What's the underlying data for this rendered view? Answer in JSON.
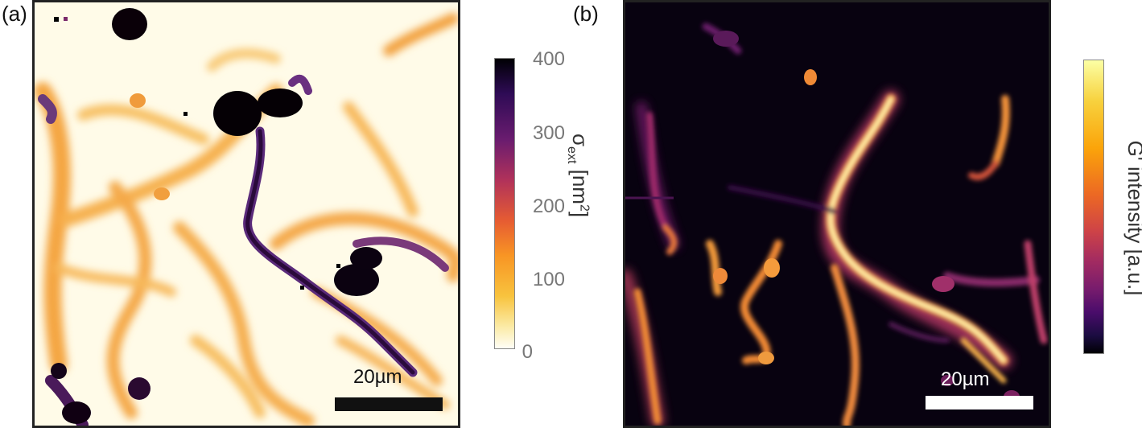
{
  "panel_a": {
    "label": "(a)",
    "scalebar_text": "20µm",
    "colorbar": {
      "ticks": [
        "400",
        "300",
        "200",
        "100",
        "0"
      ],
      "title_symbol": "σ",
      "title_sub": "ext",
      "title_unit": "[nm",
      "title_sup": "2",
      "title_end": "]",
      "colormap": "inferno-reversed",
      "color_low": "#fffef0",
      "color_high": "#000000"
    }
  },
  "panel_b": {
    "label": "(b)",
    "scalebar_text": "20µm",
    "colorbar": {
      "title": "G' intensity [a.u.]",
      "colormap": "inferno",
      "color_low": "#000004",
      "color_high": "#fcffa4"
    }
  }
}
